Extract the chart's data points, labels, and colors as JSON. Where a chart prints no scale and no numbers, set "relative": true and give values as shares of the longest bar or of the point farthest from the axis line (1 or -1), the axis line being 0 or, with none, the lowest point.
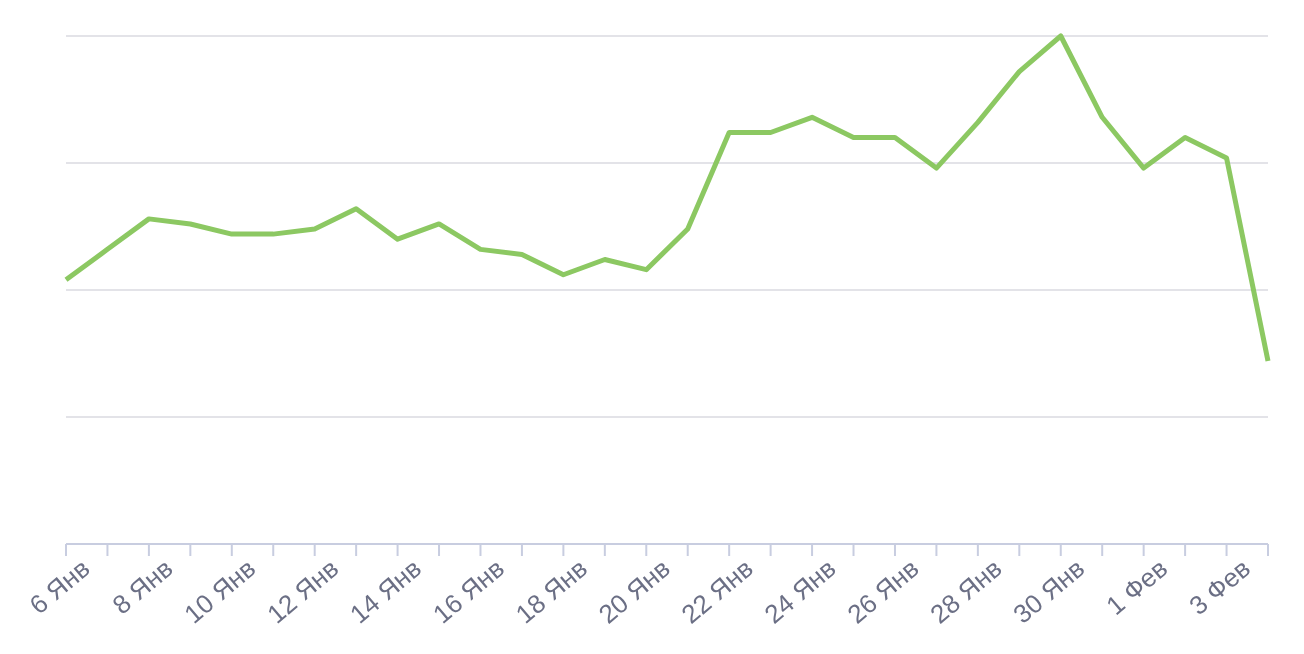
{
  "chart_data": {
    "type": "line",
    "relative": true,
    "grid": "y",
    "legend": false,
    "marker": "none",
    "line_style": "solid",
    "categories": [
      "6 Янв",
      null,
      "8 Янв",
      null,
      "10 Янв",
      null,
      "12 Янв",
      null,
      "14 Янв",
      null,
      "16 Янв",
      null,
      "18 Янв",
      null,
      "20 Янв",
      null,
      "22 Янв",
      null,
      "24 Янв",
      null,
      "26 Янв",
      null,
      "28 Янв",
      null,
      "30 Янв",
      null,
      "1 Фев",
      null,
      "3 Фев",
      null
    ],
    "series": [
      {
        "color": "#8cc862",
        "values": [
          0.52,
          0.58,
          0.64,
          0.63,
          0.61,
          0.61,
          0.62,
          0.66,
          0.6,
          0.63,
          0.58,
          0.57,
          0.53,
          0.56,
          0.54,
          0.62,
          0.81,
          0.81,
          0.84,
          0.8,
          0.8,
          0.74,
          0.83,
          0.93,
          1,
          0.84,
          0.74,
          0.8,
          0.76,
          0.36
        ]
      }
    ]
  }
}
